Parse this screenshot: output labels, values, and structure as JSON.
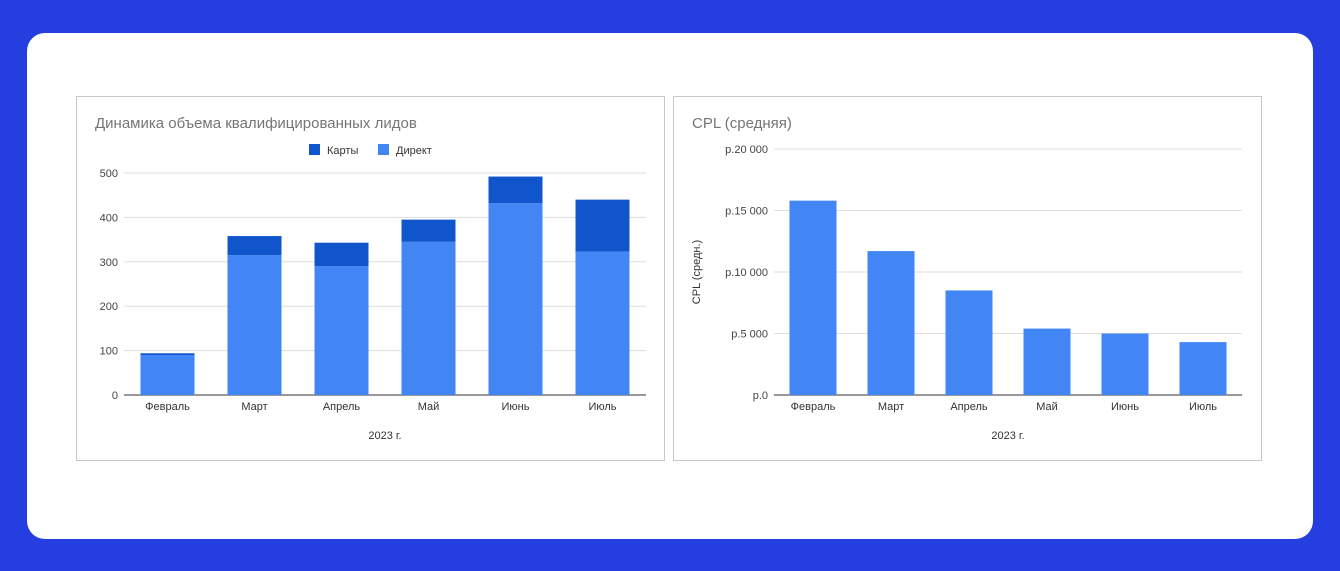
{
  "colors": {
    "background": "#243ee0",
    "card": "#ffffff",
    "primary_series": "#4285f4",
    "secondary_series": "#1155cc"
  },
  "chart_data": [
    {
      "type": "bar",
      "stacked": true,
      "title": "Динамика объема квалифицированных лидов",
      "xlabel": "2023 г.",
      "ylabel": "",
      "categories": [
        "Февраль",
        "Март",
        "Апрель",
        "Май",
        "Июнь",
        "Июль"
      ],
      "series": [
        {
          "name": "Директ",
          "color": "#4285f4",
          "values": [
            90,
            315,
            290,
            345,
            432,
            323
          ]
        },
        {
          "name": "Карты",
          "color": "#1155cc",
          "values": [
            4,
            43,
            53,
            50,
            60,
            117
          ]
        }
      ],
      "legend_order": [
        "Карты",
        "Директ"
      ],
      "legend_position": "top",
      "ylim": [
        0,
        500
      ],
      "yticks": [
        "0",
        "100",
        "200",
        "300",
        "400",
        "500"
      ],
      "grid": true
    },
    {
      "type": "bar",
      "title": "CPL (средняя)",
      "xlabel": "2023 г.",
      "ylabel": "CPL (средн.)",
      "categories": [
        "Февраль",
        "Март",
        "Апрель",
        "Май",
        "Июнь",
        "Июль"
      ],
      "series": [
        {
          "color": "#4285f4",
          "values": [
            15800,
            11700,
            8500,
            5400,
            5000,
            4300
          ]
        }
      ],
      "ylim": [
        0,
        20000
      ],
      "yticks": [
        "р.0",
        "р.5 000",
        "р.10 000",
        "р.15 000",
        "р.20 000"
      ],
      "grid": true
    }
  ]
}
